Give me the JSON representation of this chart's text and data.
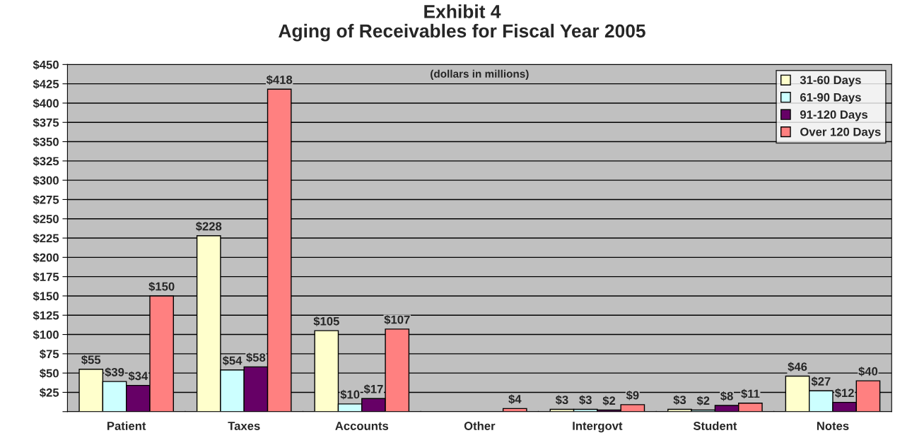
{
  "chart_data": {
    "type": "bar",
    "title": "Exhibit 4\nAging of Receivables for Fiscal Year 2005",
    "subtitle": "(dollars in millions)",
    "categories": [
      "Patient",
      "Taxes",
      "Accounts",
      "Other",
      "Intergovt",
      "Student",
      "Notes"
    ],
    "series": [
      {
        "name": "31-60 Days",
        "color": "#ffffcc",
        "values": [
          55,
          228,
          105,
          null,
          3,
          3,
          46
        ],
        "value_labels": [
          "$55",
          "$228",
          "$105",
          null,
          "$3",
          "$3",
          "$46"
        ]
      },
      {
        "name": "61-90 Days",
        "color": "#ccffff",
        "values": [
          39,
          54,
          10,
          null,
          3,
          2,
          27
        ],
        "value_labels": [
          "$39",
          "$54",
          "$10",
          null,
          "$3",
          "$2",
          "$27"
        ]
      },
      {
        "name": "91-120 Days",
        "color": "#660066",
        "values": [
          34,
          58,
          17,
          null,
          2,
          8,
          12
        ],
        "value_labels": [
          "$34",
          "$58",
          "$17",
          null,
          "$2",
          "$8",
          "$12"
        ]
      },
      {
        "name": "Over 120 Days",
        "color": "#ff8080",
        "values": [
          150,
          418,
          107,
          4,
          9,
          11,
          40
        ],
        "value_labels": [
          "$150",
          "$418",
          "$107",
          "$4",
          "$9",
          "$11",
          "$40"
        ]
      }
    ],
    "ylim": [
      0,
      450
    ],
    "yticks": [
      {
        "value": 0,
        "label": null
      },
      {
        "value": 25,
        "label": "$25"
      },
      {
        "value": 50,
        "label": "$50"
      },
      {
        "value": 75,
        "label": "$75"
      },
      {
        "value": 100,
        "label": "$100"
      },
      {
        "value": 125,
        "label": "$125"
      },
      {
        "value": 150,
        "label": "$150"
      },
      {
        "value": 175,
        "label": "$175"
      },
      {
        "value": 200,
        "label": "$200"
      },
      {
        "value": 225,
        "label": "$225"
      },
      {
        "value": 250,
        "label": "$250"
      },
      {
        "value": 275,
        "label": "$275"
      },
      {
        "value": 300,
        "label": "$300"
      },
      {
        "value": 325,
        "label": "$325"
      },
      {
        "value": 350,
        "label": "$350"
      },
      {
        "value": 375,
        "label": "$375"
      },
      {
        "value": 400,
        "label": "$400"
      },
      {
        "value": 425,
        "label": "$425"
      },
      {
        "value": 450,
        "label": "$450"
      }
    ],
    "grid": "y",
    "legend": "top right"
  }
}
